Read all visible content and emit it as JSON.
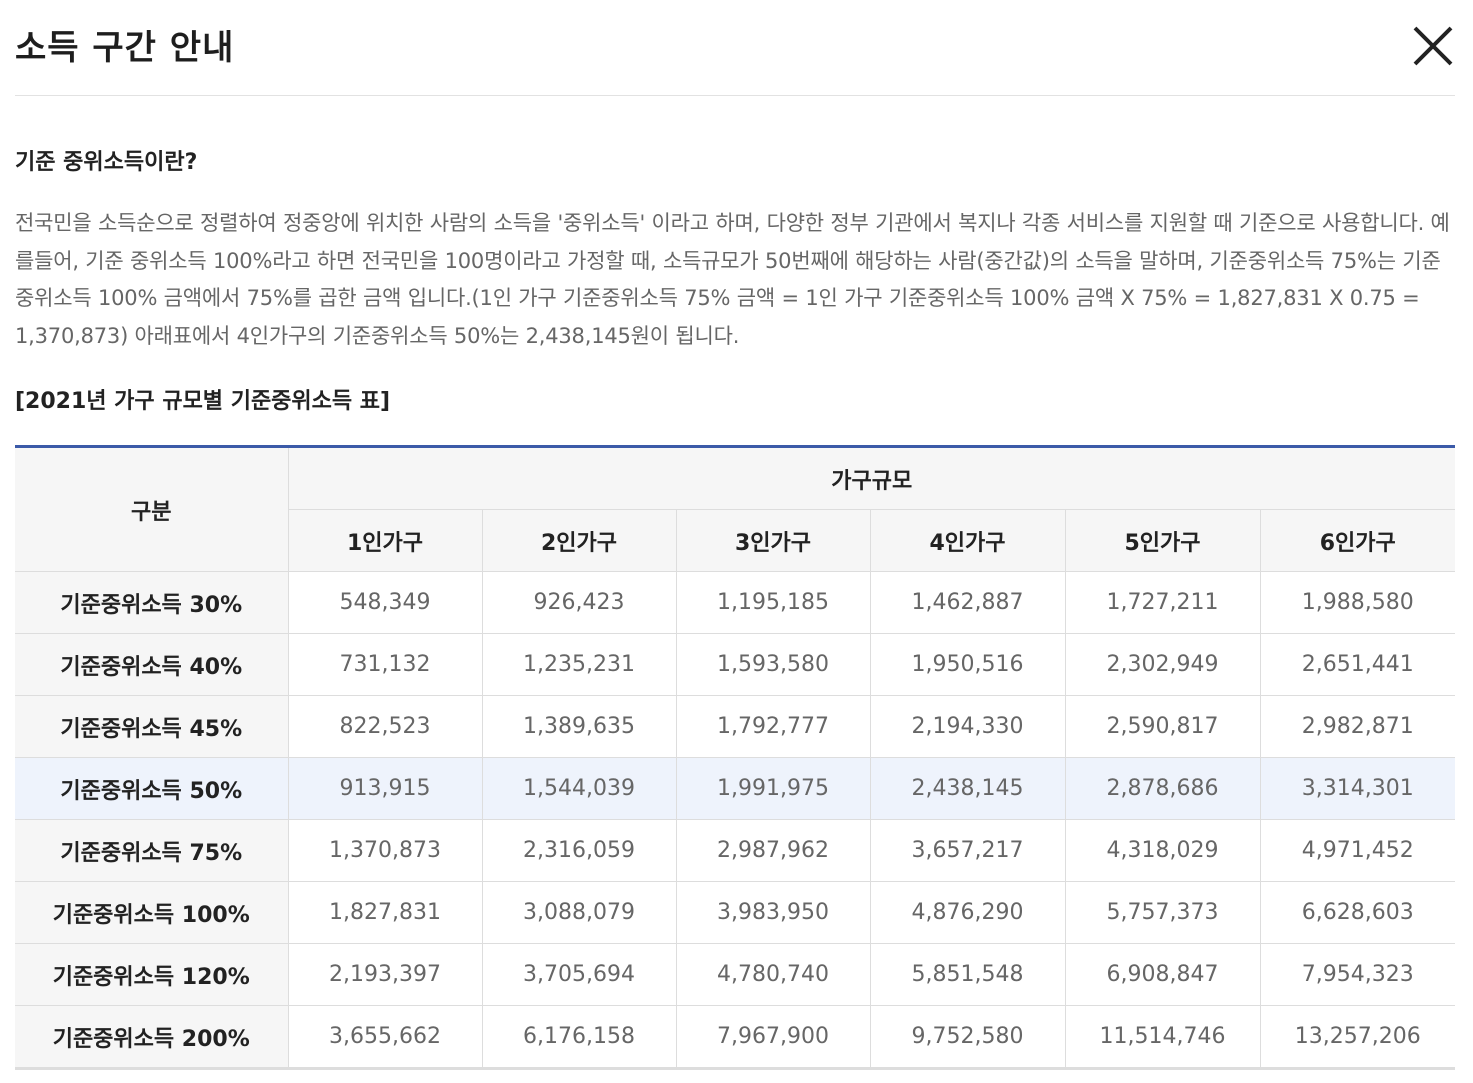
{
  "header": {
    "title": "소득 구간 안내",
    "close_icon": "close-icon"
  },
  "section": {
    "heading": "기준 중위소득이란?",
    "description": "전국민을 소득순으로 정렬하여 정중앙에 위치한 사람의 소득을 '중위소득' 이라고 하며, 다양한 정부 기관에서 복지나 각종 서비스를 지원할 때 기준으로 사용합니다. 예를들어, 기준 중위소득 100%라고 하면 전국민을 100명이라고 가정할 때, 소득규모가 50번째에 해당하는 사람(중간값)의 소득을 말하며, 기준중위소득 75%는 기준중위소득 100% 금액에서 75%를 곱한 금액 입니다.(1인 가구 기준중위소득 75% 금액 = 1인 가구 기준중위소득 100% 금액 X 75% = 1,827,831 X 0.75 = 1,370,873) 아래표에서 4인가구의 기준중위소득 50%는 2,438,145원이 됩니다."
  },
  "table": {
    "caption": "[2021년 가구 규모별 기준중위소득 표]",
    "corner_label": "구분",
    "group_label": "가구규모",
    "columns": [
      "1인가구",
      "2인가구",
      "3인가구",
      "4인가구",
      "5인가구",
      "6인가구"
    ],
    "highlight_color": "#eef3fc",
    "accent_color": "#3b5aa8",
    "rows": [
      {
        "label": "기준중위소득 30%",
        "values": [
          "548,349",
          "926,423",
          "1,195,185",
          "1,462,887",
          "1,727,211",
          "1,988,580"
        ]
      },
      {
        "label": "기준중위소득 40%",
        "values": [
          "731,132",
          "1,235,231",
          "1,593,580",
          "1,950,516",
          "2,302,949",
          "2,651,441"
        ]
      },
      {
        "label": "기준중위소득 45%",
        "values": [
          "822,523",
          "1,389,635",
          "1,792,777",
          "2,194,330",
          "2,590,817",
          "2,982,871"
        ]
      },
      {
        "label": "기준중위소득 50%",
        "values": [
          "913,915",
          "1,544,039",
          "1,991,975",
          "2,438,145",
          "2,878,686",
          "3,314,301"
        ],
        "highlighted": true
      },
      {
        "label": "기준중위소득 75%",
        "values": [
          "1,370,873",
          "2,316,059",
          "2,987,962",
          "3,657,217",
          "4,318,029",
          "4,971,452"
        ]
      },
      {
        "label": "기준중위소득 100%",
        "values": [
          "1,827,831",
          "3,088,079",
          "3,983,950",
          "4,876,290",
          "5,757,373",
          "6,628,603"
        ]
      },
      {
        "label": "기준중위소득 120%",
        "values": [
          "2,193,397",
          "3,705,694",
          "4,780,740",
          "5,851,548",
          "6,908,847",
          "7,954,323"
        ]
      },
      {
        "label": "기준중위소득 200%",
        "values": [
          "3,655,662",
          "6,176,158",
          "7,967,900",
          "9,752,580",
          "11,514,746",
          "13,257,206"
        ]
      }
    ]
  }
}
